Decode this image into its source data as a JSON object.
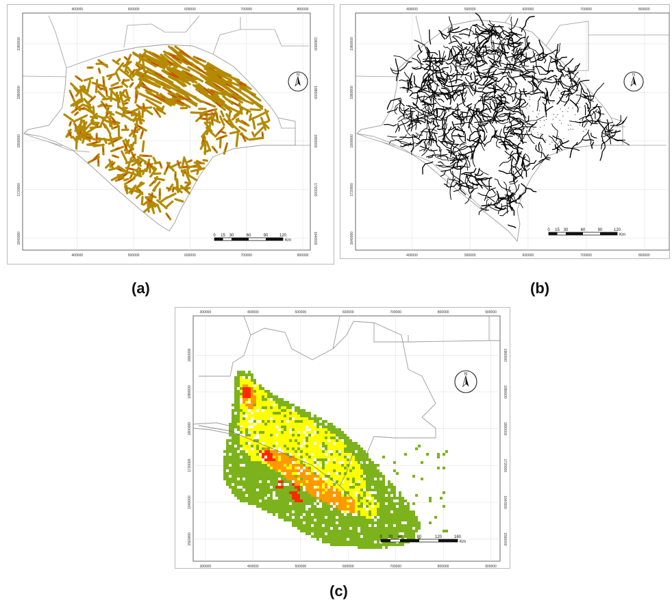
{
  "panels": [
    {
      "id": "a",
      "caption": "(a)",
      "x_ticks": [
        "400000",
        "500000",
        "600000",
        "700000",
        "800000"
      ],
      "y_ticks": [
        "1960000",
        "1880000",
        "1800000",
        "1720000",
        "1640000"
      ],
      "scalebar": {
        "labels": [
          "0",
          "15",
          "30",
          "60",
          "90",
          "120"
        ],
        "unit": "Km"
      },
      "north_label": "N",
      "layer": "lineaments"
    },
    {
      "id": "b",
      "caption": "(b)",
      "x_ticks": [
        "400000",
        "500000",
        "600000",
        "700000",
        "800000"
      ],
      "y_ticks": [
        "1960000",
        "1880000",
        "1800000",
        "1720000",
        "1640000"
      ],
      "scalebar": {
        "labels": [
          "0",
          "15",
          "30",
          "60",
          "90",
          "120"
        ],
        "unit": "Km"
      },
      "north_label": "N",
      "layer": "drainage"
    },
    {
      "id": "c",
      "caption": "(c)",
      "x_ticks": [
        "300000",
        "400000",
        "500000",
        "600000",
        "700000",
        "800000",
        "900000"
      ],
      "y_ticks": [
        "1960000",
        "1880000",
        "1800000",
        "1720000",
        "1640000",
        "1560000"
      ],
      "scalebar": {
        "labels": [
          "0",
          "20",
          "40",
          "80",
          "120",
          "160"
        ],
        "unit": "Km"
      },
      "north_label": "N",
      "layer": "heat",
      "colors": {
        "low": "#7cb31c",
        "mid": "#ffff00",
        "high": "#ff9900",
        "very_high": "#ff2a00"
      }
    }
  ],
  "colors": {
    "lineament_fill": "#b38a00",
    "lineament_core": "#e0200a",
    "drainage": "#000000",
    "boundary": "#9a9a9a"
  }
}
